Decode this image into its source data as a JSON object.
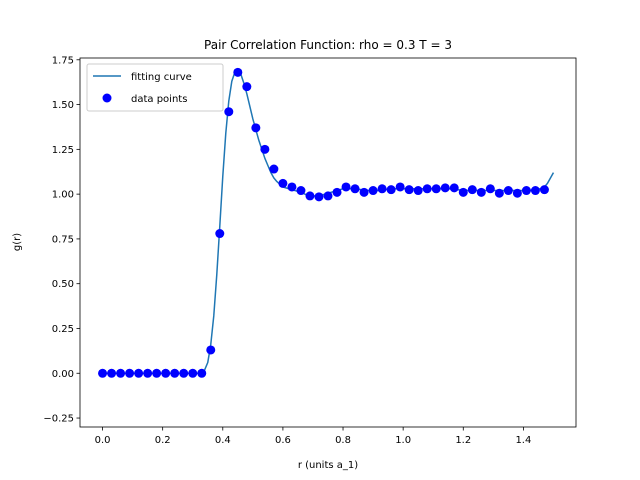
{
  "chart_data": {
    "type": "scatter",
    "title": "Pair Correlation Function: rho = 0.3 T = 3",
    "xlabel": "r (units a_1)",
    "ylabel": "g(r)",
    "xlim": [
      -0.075,
      1.575
    ],
    "ylim": [
      -0.3,
      1.76
    ],
    "xticks": [
      0.0,
      0.2,
      0.4,
      0.6,
      0.8,
      1.0,
      1.2,
      1.4
    ],
    "xtick_labels": [
      "0.0",
      "0.2",
      "0.4",
      "0.6",
      "0.8",
      "1.0",
      "1.2",
      "1.4"
    ],
    "yticks": [
      -0.25,
      0.0,
      0.25,
      0.5,
      0.75,
      1.0,
      1.25,
      1.5,
      1.75
    ],
    "ytick_labels": [
      "−0.25",
      "0.00",
      "0.25",
      "0.50",
      "0.75",
      "1.00",
      "1.25",
      "1.50",
      "1.75"
    ],
    "grid": false,
    "legend_position": "top-left",
    "series": [
      {
        "name": "fitting curve",
        "kind": "line",
        "color": "#1f77b4",
        "x": [
          0.0,
          0.33,
          0.34,
          0.35,
          0.36,
          0.37,
          0.38,
          0.39,
          0.4,
          0.41,
          0.42,
          0.43,
          0.44,
          0.45,
          0.46,
          0.47,
          0.48,
          0.49,
          0.5,
          0.51,
          0.52,
          0.53,
          0.54,
          0.55,
          0.56,
          0.57,
          0.58,
          0.6,
          0.62,
          0.64,
          0.66,
          0.68,
          0.7,
          0.72,
          0.74,
          0.76,
          0.78,
          0.8,
          0.84,
          0.88,
          0.92,
          0.96,
          1.0,
          1.04,
          1.08,
          1.12,
          1.16,
          1.2,
          1.24,
          1.28,
          1.32,
          1.36,
          1.4,
          1.44,
          1.47,
          1.48,
          1.49,
          1.5
        ],
        "y": [
          0.0,
          0.0,
          0.02,
          0.06,
          0.16,
          0.32,
          0.55,
          0.82,
          1.1,
          1.34,
          1.52,
          1.63,
          1.68,
          1.69,
          1.67,
          1.62,
          1.56,
          1.49,
          1.42,
          1.36,
          1.3,
          1.25,
          1.2,
          1.16,
          1.12,
          1.09,
          1.07,
          1.04,
          1.03,
          1.02,
          1.01,
          0.995,
          0.99,
          0.99,
          1.0,
          1.01,
          1.02,
          1.03,
          1.03,
          1.02,
          1.02,
          1.03,
          1.03,
          1.03,
          1.03,
          1.03,
          1.03,
          1.02,
          1.02,
          1.02,
          1.02,
          1.02,
          1.02,
          1.02,
          1.04,
          1.06,
          1.09,
          1.12
        ]
      },
      {
        "name": "data points",
        "kind": "scatter",
        "color": "#0000ff",
        "x": [
          0.0,
          0.03,
          0.06,
          0.09,
          0.12,
          0.15,
          0.18,
          0.21,
          0.24,
          0.27,
          0.3,
          0.33,
          0.36,
          0.39,
          0.42,
          0.45,
          0.48,
          0.51,
          0.54,
          0.57,
          0.6,
          0.63,
          0.66,
          0.69,
          0.72,
          0.75,
          0.78,
          0.81,
          0.84,
          0.87,
          0.9,
          0.93,
          0.96,
          0.99,
          1.02,
          1.05,
          1.08,
          1.11,
          1.14,
          1.17,
          1.2,
          1.23,
          1.26,
          1.29,
          1.32,
          1.35,
          1.38,
          1.41,
          1.44,
          1.47
        ],
        "y": [
          0.0,
          0.0,
          0.0,
          0.0,
          0.0,
          0.0,
          0.0,
          0.0,
          0.0,
          0.0,
          0.0,
          0.0,
          0.13,
          0.78,
          1.46,
          1.68,
          1.6,
          1.37,
          1.25,
          1.14,
          1.06,
          1.04,
          1.02,
          0.99,
          0.985,
          0.99,
          1.01,
          1.04,
          1.03,
          1.01,
          1.02,
          1.03,
          1.025,
          1.04,
          1.025,
          1.02,
          1.03,
          1.03,
          1.035,
          1.035,
          1.01,
          1.025,
          1.01,
          1.03,
          1.005,
          1.02,
          1.005,
          1.02,
          1.02,
          1.025
        ]
      }
    ]
  }
}
